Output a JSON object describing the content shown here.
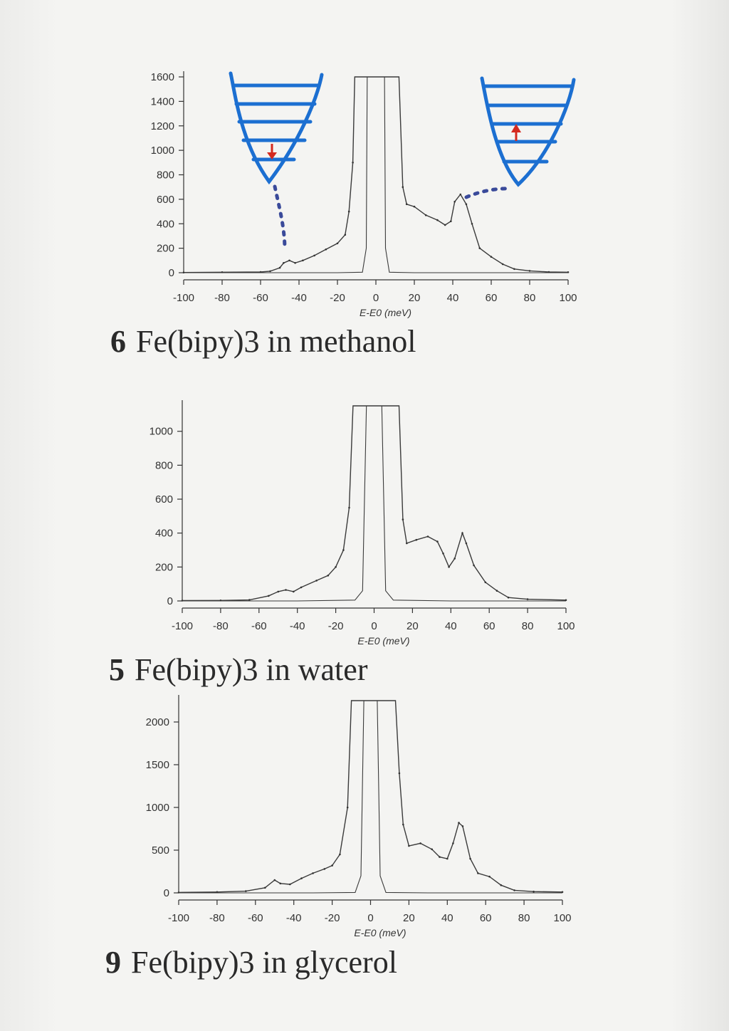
{
  "charts": [
    {
      "caption_number": "6",
      "caption_text": "Fe(bipy)3 in methanol",
      "xlabel": "E-E0 (meV)"
    },
    {
      "caption_number": "5",
      "caption_text": "Fe(bipy)3 in water",
      "xlabel": "E-E0 (meV)"
    },
    {
      "caption_number": "9",
      "caption_text": "Fe(bipy)3 in glycerol",
      "xlabel": "E-E0 (meV)"
    }
  ],
  "chart_data": [
    {
      "type": "line",
      "title": "6 Fe(bipy)3 in methanol",
      "xlabel": "E-E0 (meV)",
      "ylabel": "",
      "xlim": [
        -100,
        100
      ],
      "ylim": [
        0,
        1600
      ],
      "xticks": [
        -100,
        -80,
        -60,
        -40,
        -20,
        0,
        20,
        40,
        60,
        80,
        100
      ],
      "yticks": [
        0,
        200,
        400,
        600,
        800,
        1000,
        1200,
        1400,
        1600
      ],
      "series": [
        {
          "values": [
            [
              -100,
              2
            ],
            [
              -80,
              4
            ],
            [
              -60,
              6
            ],
            [
              -55,
              12
            ],
            [
              -50,
              40
            ],
            [
              -48,
              80
            ],
            [
              -45,
              100
            ],
            [
              -42,
              80
            ],
            [
              -38,
              100
            ],
            [
              -32,
              140
            ],
            [
              -26,
              190
            ],
            [
              -20,
              240
            ],
            [
              -16,
              310
            ],
            [
              -14,
              500
            ],
            [
              -12,
              900
            ],
            [
              -11,
              1600
            ],
            [
              12,
              1600
            ],
            [
              14,
              700
            ],
            [
              16,
              560
            ],
            [
              20,
              540
            ],
            [
              26,
              470
            ],
            [
              32,
              430
            ],
            [
              36,
              390
            ],
            [
              39,
              420
            ],
            [
              41,
              580
            ],
            [
              44,
              640
            ],
            [
              47,
              560
            ],
            [
              50,
              400
            ],
            [
              54,
              200
            ],
            [
              60,
              130
            ],
            [
              66,
              70
            ],
            [
              72,
              30
            ],
            [
              80,
              15
            ],
            [
              90,
              6
            ],
            [
              100,
              4
            ]
          ]
        },
        {
          "values": [
            [
              -100,
              0
            ],
            [
              -20,
              0
            ],
            [
              -7,
              4
            ],
            [
              -5,
              200
            ],
            [
              -4.5,
              1600
            ],
            [
              4.5,
              1600
            ],
            [
              5,
              200
            ],
            [
              7,
              4
            ],
            [
              20,
              0
            ],
            [
              100,
              0
            ]
          ]
        }
      ]
    },
    {
      "type": "line",
      "title": "5 Fe(bipy)3 in water",
      "xlabel": "E-E0 (meV)",
      "ylabel": "",
      "xlim": [
        -100,
        100
      ],
      "ylim": [
        0,
        1150
      ],
      "xticks": [
        -100,
        -80,
        -60,
        -40,
        -20,
        0,
        20,
        40,
        60,
        80,
        100
      ],
      "yticks": [
        0,
        200,
        400,
        600,
        800,
        1000
      ],
      "series": [
        {
          "values": [
            [
              -100,
              2
            ],
            [
              -80,
              3
            ],
            [
              -65,
              6
            ],
            [
              -55,
              30
            ],
            [
              -50,
              55
            ],
            [
              -46,
              65
            ],
            [
              -42,
              55
            ],
            [
              -38,
              80
            ],
            [
              -30,
              120
            ],
            [
              -24,
              150
            ],
            [
              -20,
              200
            ],
            [
              -16,
              300
            ],
            [
              -13,
              550
            ],
            [
              -11,
              1150
            ],
            [
              13,
              1150
            ],
            [
              15,
              480
            ],
            [
              17,
              340
            ],
            [
              22,
              360
            ],
            [
              28,
              380
            ],
            [
              33,
              350
            ],
            [
              36,
              280
            ],
            [
              39,
              200
            ],
            [
              42,
              250
            ],
            [
              46,
              400
            ],
            [
              48,
              340
            ],
            [
              52,
              210
            ],
            [
              58,
              110
            ],
            [
              64,
              60
            ],
            [
              70,
              20
            ],
            [
              80,
              10
            ],
            [
              100,
              5
            ]
          ]
        },
        {
          "values": [
            [
              -100,
              0
            ],
            [
              -40,
              0
            ],
            [
              -10,
              5
            ],
            [
              -6,
              60
            ],
            [
              -4,
              1150
            ],
            [
              4,
              1150
            ],
            [
              6,
              60
            ],
            [
              10,
              5
            ],
            [
              40,
              0
            ],
            [
              100,
              0
            ]
          ]
        }
      ]
    },
    {
      "type": "line",
      "title": "9 Fe(bipy)3 in glycerol",
      "xlabel": "E-E0 (meV)",
      "ylabel": "",
      "xlim": [
        -100,
        100
      ],
      "ylim": [
        0,
        2250
      ],
      "xticks": [
        -100,
        -80,
        -60,
        -40,
        -20,
        0,
        20,
        40,
        60,
        80,
        100
      ],
      "yticks": [
        0,
        500,
        1000,
        1500,
        2000
      ],
      "series": [
        {
          "values": [
            [
              -100,
              5
            ],
            [
              -80,
              10
            ],
            [
              -65,
              20
            ],
            [
              -55,
              60
            ],
            [
              -50,
              150
            ],
            [
              -47,
              110
            ],
            [
              -42,
              100
            ],
            [
              -36,
              170
            ],
            [
              -30,
              230
            ],
            [
              -24,
              280
            ],
            [
              -20,
              320
            ],
            [
              -16,
              450
            ],
            [
              -12,
              1000
            ],
            [
              -10,
              2250
            ],
            [
              13,
              2250
            ],
            [
              15,
              1400
            ],
            [
              17,
              800
            ],
            [
              20,
              550
            ],
            [
              26,
              580
            ],
            [
              32,
              510
            ],
            [
              36,
              420
            ],
            [
              40,
              400
            ],
            [
              43,
              580
            ],
            [
              46,
              820
            ],
            [
              48,
              780
            ],
            [
              52,
              400
            ],
            [
              56,
              230
            ],
            [
              62,
              190
            ],
            [
              68,
              90
            ],
            [
              75,
              30
            ],
            [
              85,
              15
            ],
            [
              100,
              10
            ]
          ]
        },
        {
          "values": [
            [
              -100,
              0
            ],
            [
              -30,
              0
            ],
            [
              -8,
              5
            ],
            [
              -5,
              200
            ],
            [
              -3.5,
              2250
            ],
            [
              3.5,
              2250
            ],
            [
              5,
              200
            ],
            [
              8,
              5
            ],
            [
              30,
              0
            ],
            [
              100,
              0
            ]
          ]
        }
      ]
    }
  ]
}
